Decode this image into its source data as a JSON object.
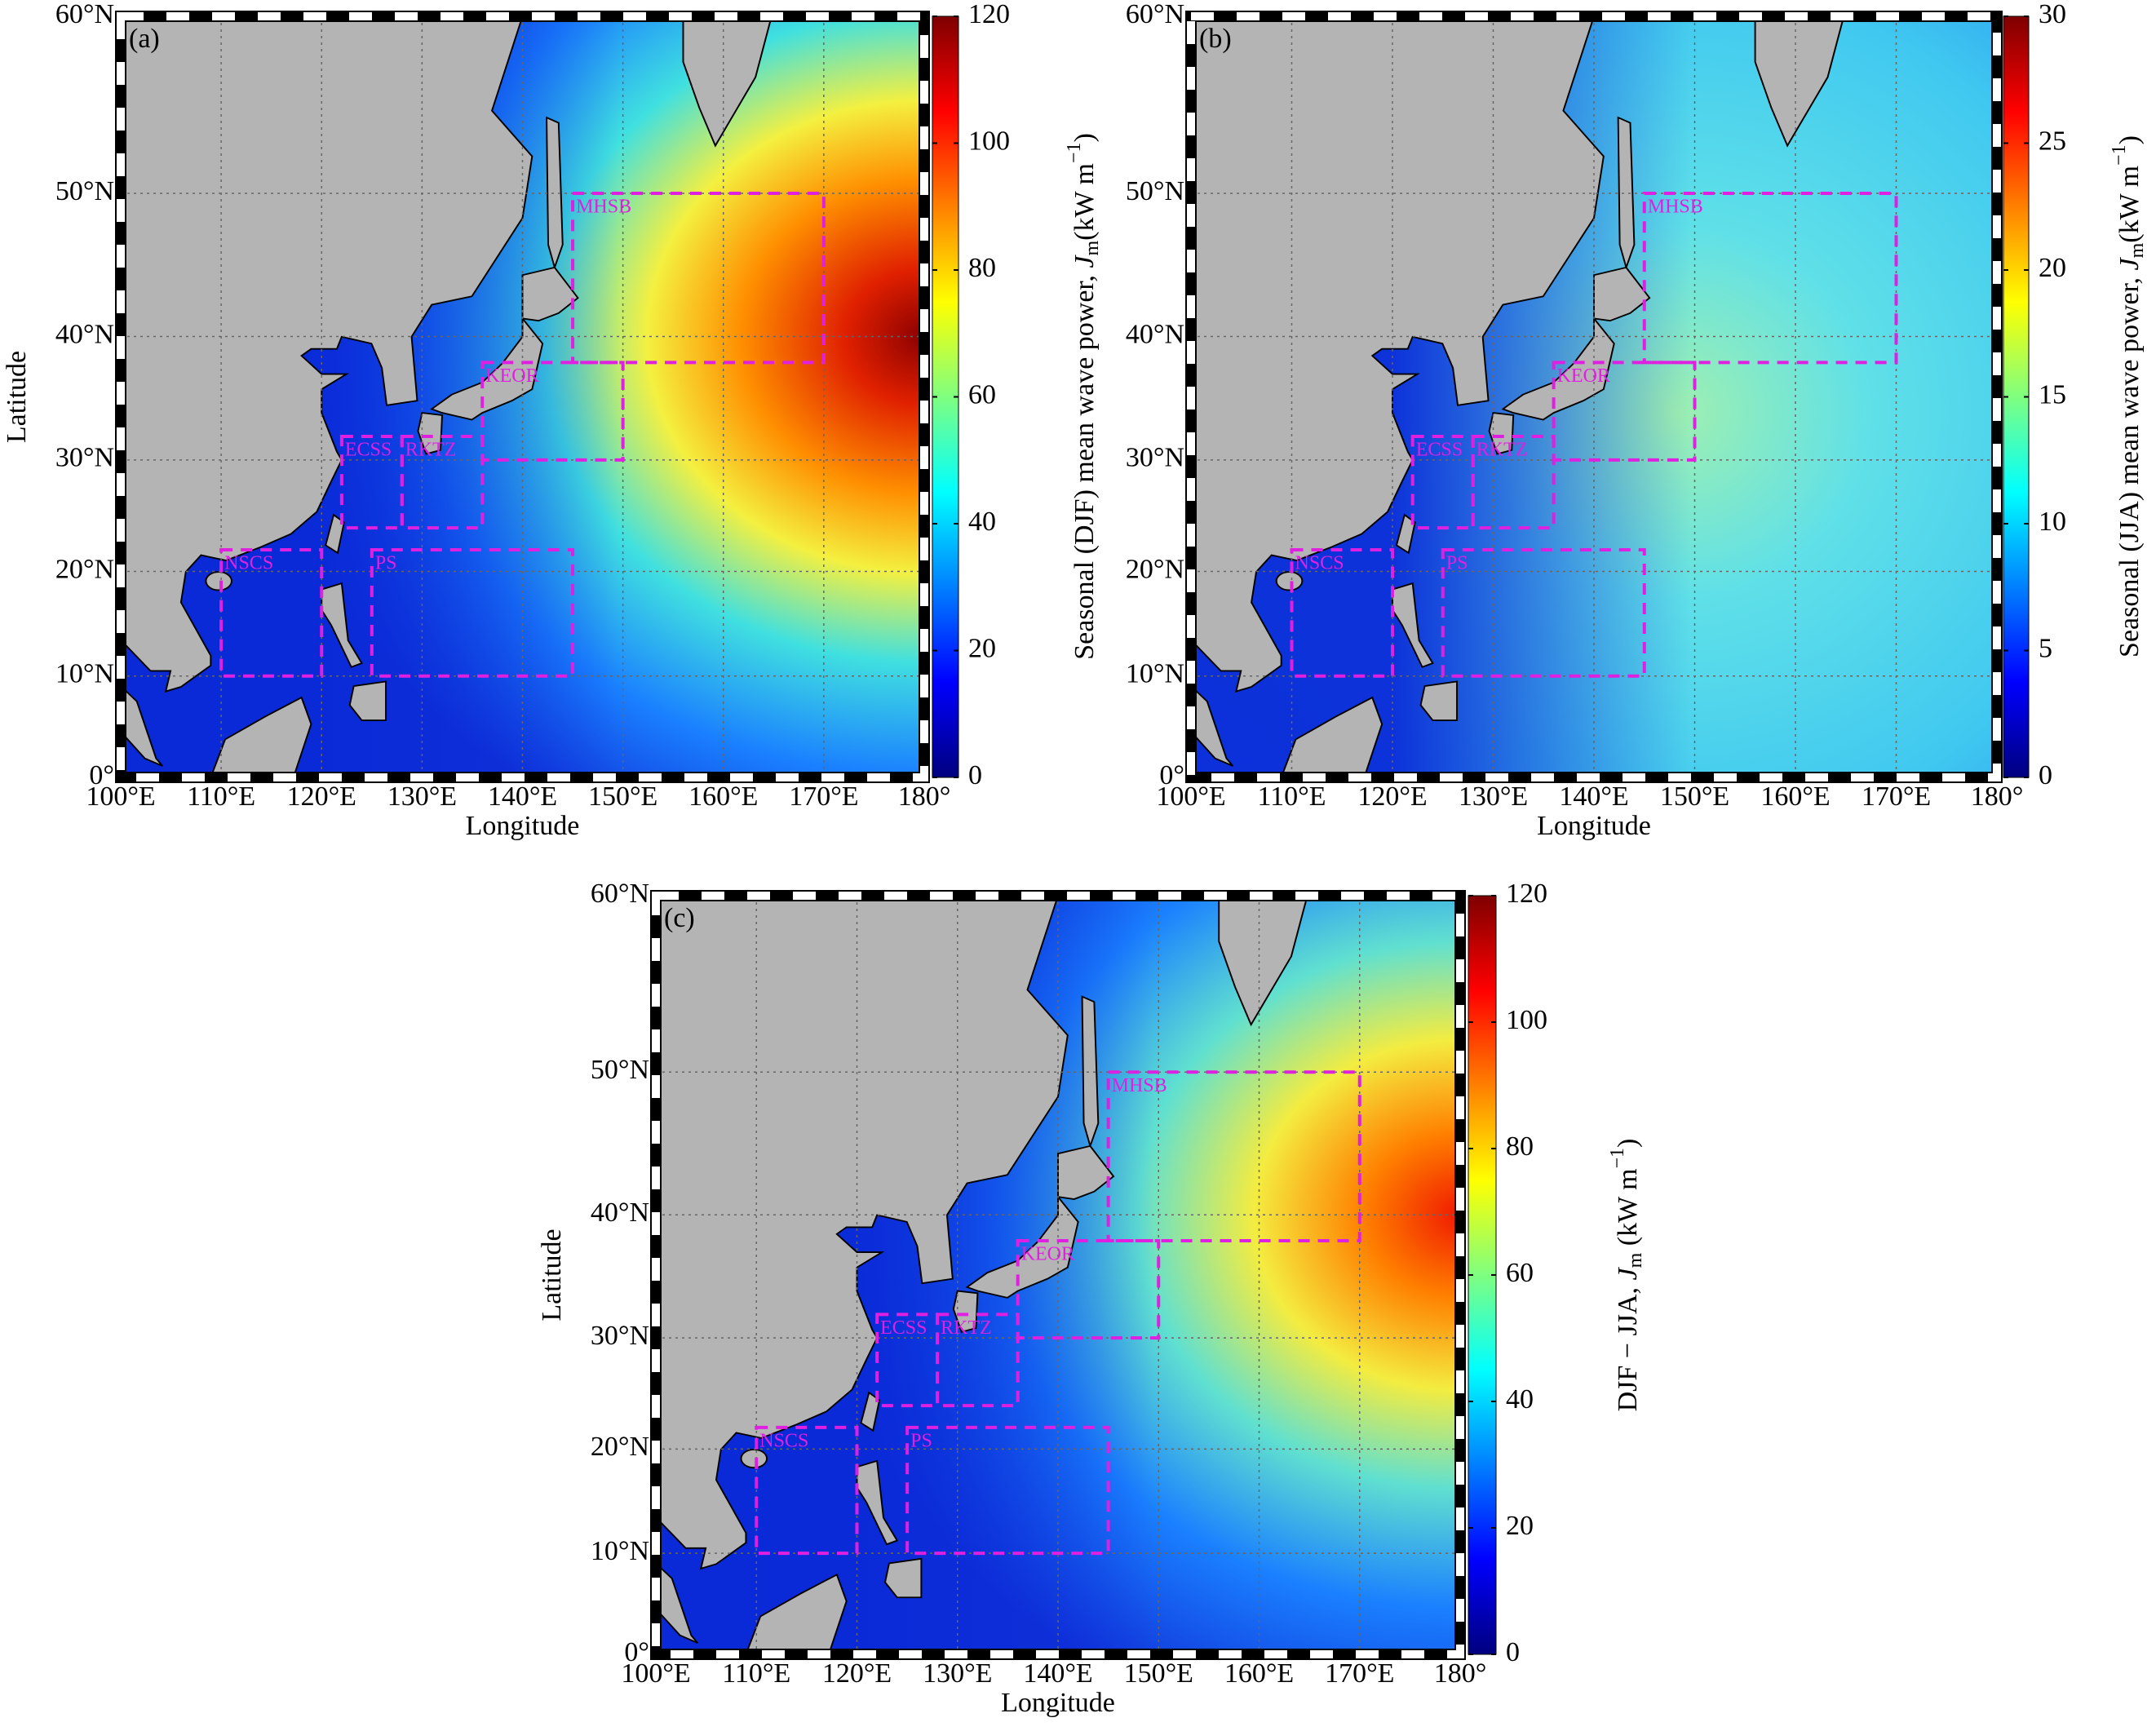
{
  "panels": [
    {
      "label": "(a)",
      "xlabel": "Longitude",
      "ylabel": "Latitude",
      "xlim": [
        100,
        180
      ],
      "ylim": [
        0,
        60
      ],
      "xticks": [
        {
          "value": 100,
          "label": "100°E"
        },
        {
          "value": 110,
          "label": "110°E"
        },
        {
          "value": 120,
          "label": "120°E"
        },
        {
          "value": 130,
          "label": "130°E"
        },
        {
          "value": 140,
          "label": "140°E"
        },
        {
          "value": 150,
          "label": "150°E"
        },
        {
          "value": 160,
          "label": "160°E"
        },
        {
          "value": 170,
          "label": "170°E"
        },
        {
          "value": 180,
          "label": "180°"
        }
      ],
      "yticks": [
        {
          "value": 0,
          "label": "0°"
        },
        {
          "value": 10,
          "label": "10°N"
        },
        {
          "value": 20,
          "label": "20°N"
        },
        {
          "value": 30,
          "label": "30°N"
        },
        {
          "value": 40,
          "label": "40°N"
        },
        {
          "value": 50,
          "label": "50°N"
        },
        {
          "value": 60,
          "label": "60°N"
        }
      ],
      "colorbar": {
        "label": {
          "text": "Seasonal (DJF) mean wave power, ",
          "symbol": "J",
          "sub": "m",
          "unit": "(kW m",
          "sup": "−1",
          "close": ")"
        },
        "lim": [
          0,
          120
        ],
        "ticks": [
          0,
          20,
          40,
          60,
          80,
          100,
          120
        ]
      }
    },
    {
      "label": "(b)",
      "xlabel": "Longitude",
      "xlim": [
        100,
        180
      ],
      "ylim": [
        0,
        60
      ],
      "xticks": [
        {
          "value": 100,
          "label": "100°E"
        },
        {
          "value": 110,
          "label": "110°E"
        },
        {
          "value": 120,
          "label": "120°E"
        },
        {
          "value": 130,
          "label": "130°E"
        },
        {
          "value": 140,
          "label": "140°E"
        },
        {
          "value": 150,
          "label": "150°E"
        },
        {
          "value": 160,
          "label": "160°E"
        },
        {
          "value": 170,
          "label": "170°E"
        },
        {
          "value": 180,
          "label": "180°"
        }
      ],
      "yticks": [
        {
          "value": 0,
          "label": "0°"
        },
        {
          "value": 10,
          "label": "10°N"
        },
        {
          "value": 20,
          "label": "20°N"
        },
        {
          "value": 30,
          "label": "30°N"
        },
        {
          "value": 40,
          "label": "40°N"
        },
        {
          "value": 50,
          "label": "50°N"
        },
        {
          "value": 60,
          "label": "60°N"
        }
      ],
      "colorbar": {
        "label": {
          "text": "Seasonal (JJA) mean wave power, ",
          "symbol": "J",
          "sub": "m",
          "unit": "(kW m",
          "sup": "−1",
          "close": ")"
        },
        "lim": [
          0,
          30
        ],
        "ticks": [
          0,
          5,
          10,
          15,
          20,
          25,
          30
        ]
      }
    },
    {
      "label": "(c)",
      "xlabel": "Longitude",
      "ylabel": "Latitude",
      "xlim": [
        100,
        180
      ],
      "ylim": [
        0,
        60
      ],
      "xticks": [
        {
          "value": 100,
          "label": "100°E"
        },
        {
          "value": 110,
          "label": "110°E"
        },
        {
          "value": 120,
          "label": "120°E"
        },
        {
          "value": 130,
          "label": "130°E"
        },
        {
          "value": 140,
          "label": "140°E"
        },
        {
          "value": 150,
          "label": "150°E"
        },
        {
          "value": 160,
          "label": "160°E"
        },
        {
          "value": 170,
          "label": "170°E"
        },
        {
          "value": 180,
          "label": "180°"
        }
      ],
      "yticks": [
        {
          "value": 0,
          "label": "0°"
        },
        {
          "value": 10,
          "label": "10°N"
        },
        {
          "value": 20,
          "label": "20°N"
        },
        {
          "value": 30,
          "label": "30°N"
        },
        {
          "value": 40,
          "label": "40°N"
        },
        {
          "value": 50,
          "label": "50°N"
        },
        {
          "value": 60,
          "label": "60°N"
        }
      ],
      "colorbar": {
        "label": {
          "text": "DJF − JJA, ",
          "symbol": "J",
          "sub": "m",
          "unit": " (kW m",
          "sup": "−1",
          "close": ")"
        },
        "lim": [
          0,
          120
        ],
        "ticks": [
          0,
          20,
          40,
          60,
          80,
          100,
          120
        ]
      }
    }
  ],
  "regions": [
    {
      "name": "MHSB",
      "lon": [
        145,
        170
      ],
      "lat": [
        38,
        50
      ]
    },
    {
      "name": "KEOR",
      "lon": [
        136,
        150
      ],
      "lat": [
        30,
        38
      ]
    },
    {
      "name": "ECSS",
      "lon": [
        122,
        128
      ],
      "lat": [
        24,
        32
      ]
    },
    {
      "name": "RKTZ",
      "lon": [
        128,
        136
      ],
      "lat": [
        24,
        32
      ]
    },
    {
      "name": "NSCS",
      "lon": [
        110,
        120
      ],
      "lat": [
        10,
        22
      ]
    },
    {
      "name": "PS",
      "lon": [
        125,
        145
      ],
      "lat": [
        10,
        22
      ]
    }
  ]
}
